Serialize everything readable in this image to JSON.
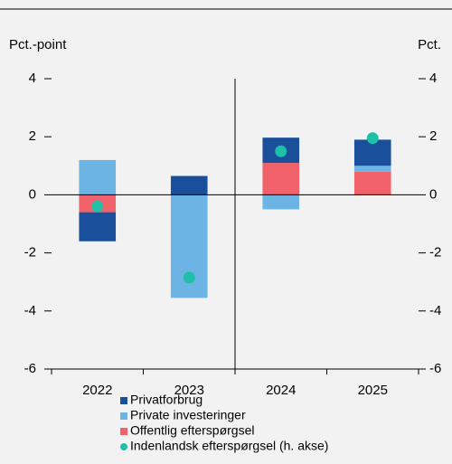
{
  "chart_data": {
    "type": "bar",
    "ylabel": "Pct.-point",
    "y2label": "Pct.",
    "categories": [
      "2022",
      "2023",
      "2024",
      "2025"
    ],
    "series": [
      {
        "name": "Privatforbrug",
        "color": "#1a4f9c",
        "values": [
          -1.0,
          0.65,
          0.87,
          0.9
        ]
      },
      {
        "name": "Private investeringer",
        "color": "#6cb4e4",
        "values": [
          1.2,
          -3.55,
          -0.5,
          0.2
        ]
      },
      {
        "name": "Offentlig efterspørgsel",
        "color": "#f0616a",
        "values": [
          -0.6,
          0,
          1.1,
          0.8
        ]
      },
      {
        "name": "Indenlandsk efterspørgsel (h. akse)",
        "color": "#1fbfa8",
        "type": "scatter",
        "axis": "y2",
        "values": [
          -0.4,
          -2.85,
          1.5,
          1.95
        ]
      }
    ],
    "stacked": true,
    "ylim": [
      -6,
      4
    ],
    "yticks": [
      -6,
      -4,
      -2,
      0,
      2,
      4
    ],
    "y2lim": [
      -6,
      4
    ],
    "y2ticks": [
      -6,
      -4,
      -2,
      0,
      2,
      4
    ]
  }
}
